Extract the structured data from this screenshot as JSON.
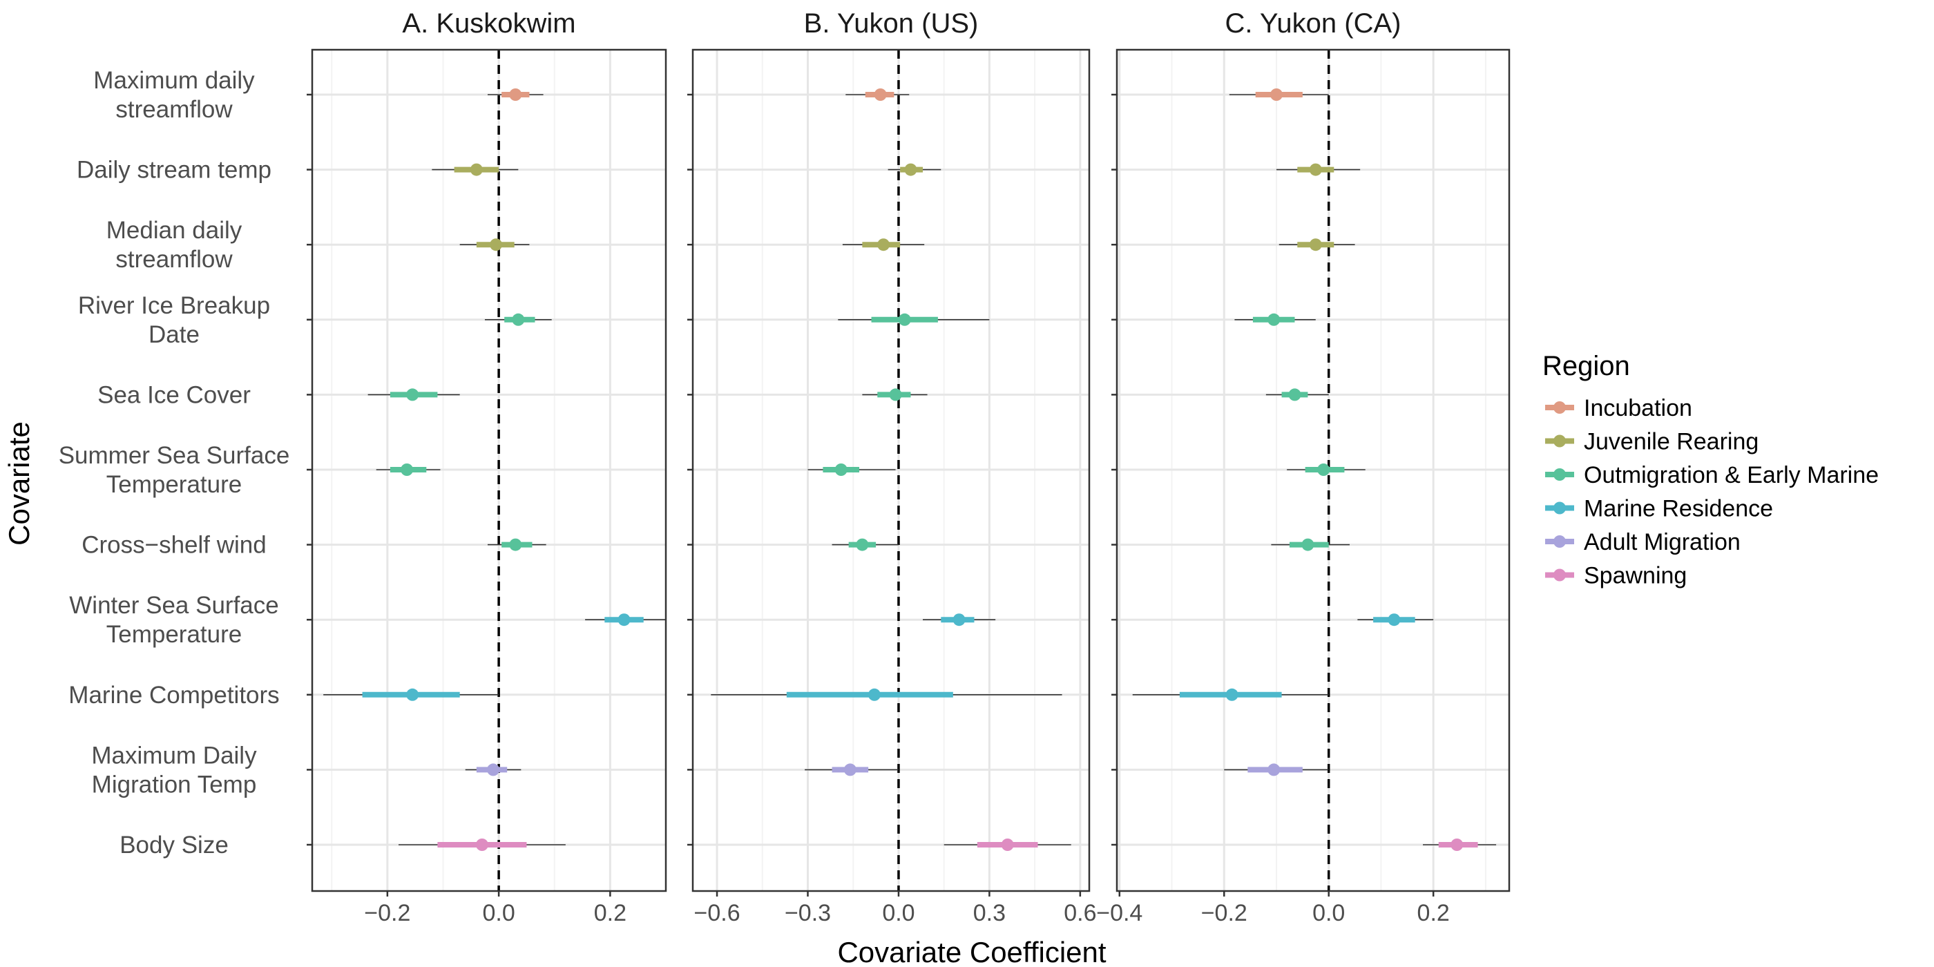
{
  "chart_data": {
    "type": "scatter",
    "subtype": "coefficient-interval-plot",
    "xlabel": "Covariate Coefficient",
    "ylabel": "Covariate",
    "grid": true,
    "reference_line_x": 0,
    "covariates": [
      [
        "Maximum daily",
        "streamflow"
      ],
      [
        "Daily stream temp"
      ],
      [
        "Median daily",
        "streamflow"
      ],
      [
        "River Ice Breakup",
        "Date"
      ],
      [
        "Sea Ice Cover"
      ],
      [
        "Summer Sea Surface",
        "Temperature"
      ],
      [
        "Cross−shelf wind"
      ],
      [
        "Winter Sea Surface",
        "Temperature"
      ],
      [
        "Marine Competitors"
      ],
      [
        "Maximum Daily",
        "Migration Temp"
      ],
      [
        "Body Size"
      ]
    ],
    "covariate_region": [
      "Incubation",
      "Juvenile Rearing",
      "Juvenile Rearing",
      "Outmigration & Early Marine",
      "Outmigration & Early Marine",
      "Outmigration & Early Marine",
      "Outmigration & Early Marine",
      "Marine Residence",
      "Marine Residence",
      "Adult Migration",
      "Spawning"
    ],
    "legend": {
      "title": "Region",
      "position": "right",
      "entries": [
        {
          "name": "Incubation",
          "color": "#E09A82"
        },
        {
          "name": "Juvenile Rearing",
          "color": "#A9AD5E"
        },
        {
          "name": "Outmigration & Early Marine",
          "color": "#57C29A"
        },
        {
          "name": "Marine Residence",
          "color": "#4DB8CB"
        },
        {
          "name": "Adult Migration",
          "color": "#A8A3DC"
        },
        {
          "name": "Spawning",
          "color": "#DE8CC1"
        }
      ]
    },
    "panels": [
      {
        "title": "A. Kuskokwim",
        "xlim": [
          -0.335,
          0.3
        ],
        "xticks": [
          -0.2,
          0.0,
          0.2
        ],
        "xtick_labels": [
          "−0.2",
          "0.0",
          "0.2"
        ],
        "estimates": [
          {
            "mean": 0.03,
            "inner": [
              0.005,
              0.055
            ],
            "outer": [
              -0.02,
              0.08
            ]
          },
          {
            "mean": -0.04,
            "inner": [
              -0.08,
              0.0
            ],
            "outer": [
              -0.12,
              0.035
            ]
          },
          {
            "mean": -0.005,
            "inner": [
              -0.04,
              0.028
            ],
            "outer": [
              -0.07,
              0.055
            ]
          },
          {
            "mean": 0.035,
            "inner": [
              0.01,
              0.065
            ],
            "outer": [
              -0.025,
              0.095
            ]
          },
          {
            "mean": -0.155,
            "inner": [
              -0.195,
              -0.11
            ],
            "outer": [
              -0.235,
              -0.07
            ]
          },
          {
            "mean": -0.165,
            "inner": [
              -0.195,
              -0.13
            ],
            "outer": [
              -0.22,
              -0.105
            ]
          },
          {
            "mean": 0.03,
            "inner": [
              0.005,
              0.06
            ],
            "outer": [
              -0.02,
              0.085
            ]
          },
          {
            "mean": 0.225,
            "inner": [
              0.19,
              0.26
            ],
            "outer": [
              0.155,
              0.3
            ]
          },
          {
            "mean": -0.155,
            "inner": [
              -0.245,
              -0.07
            ],
            "outer": [
              -0.315,
              0.0
            ]
          },
          {
            "mean": -0.01,
            "inner": [
              -0.04,
              0.015
            ],
            "outer": [
              -0.06,
              0.04
            ]
          },
          {
            "mean": -0.03,
            "inner": [
              -0.11,
              0.05
            ],
            "outer": [
              -0.18,
              0.12
            ]
          }
        ]
      },
      {
        "title": "B. Yukon (US)",
        "xlim": [
          -0.68,
          0.63
        ],
        "xticks": [
          -0.6,
          -0.3,
          0.0,
          0.3,
          0.6
        ],
        "xtick_labels": [
          "−0.6",
          "−0.3",
          "0.0",
          "0.3",
          "0.6"
        ],
        "estimates": [
          {
            "mean": -0.06,
            "inner": [
              -0.11,
              -0.015
            ],
            "outer": [
              -0.175,
              0.035
            ]
          },
          {
            "mean": 0.04,
            "inner": [
              0.005,
              0.08
            ],
            "outer": [
              -0.035,
              0.14
            ]
          },
          {
            "mean": -0.05,
            "inner": [
              -0.12,
              0.005
            ],
            "outer": [
              -0.185,
              0.085
            ]
          },
          {
            "mean": 0.02,
            "inner": [
              -0.09,
              0.13
            ],
            "outer": [
              -0.2,
              0.3
            ]
          },
          {
            "mean": -0.01,
            "inner": [
              -0.07,
              0.04
            ],
            "outer": [
              -0.12,
              0.095
            ]
          },
          {
            "mean": -0.19,
            "inner": [
              -0.25,
              -0.13
            ],
            "outer": [
              -0.3,
              -0.01
            ]
          },
          {
            "mean": -0.12,
            "inner": [
              -0.165,
              -0.075
            ],
            "outer": [
              -0.22,
              0.0
            ]
          },
          {
            "mean": 0.2,
            "inner": [
              0.14,
              0.25
            ],
            "outer": [
              0.08,
              0.32
            ]
          },
          {
            "mean": -0.08,
            "inner": [
              -0.37,
              0.18
            ],
            "outer": [
              -0.62,
              0.54
            ]
          },
          {
            "mean": -0.16,
            "inner": [
              -0.22,
              -0.1
            ],
            "outer": [
              -0.31,
              0.0
            ]
          },
          {
            "mean": 0.36,
            "inner": [
              0.26,
              0.46
            ],
            "outer": [
              0.15,
              0.57
            ]
          }
        ]
      },
      {
        "title": "C. Yukon (CA)",
        "xlim": [
          -0.405,
          0.345
        ],
        "xticks": [
          -0.4,
          -0.2,
          0.0,
          0.2
        ],
        "xtick_labels": [
          "−0.4",
          "−0.2",
          "0.0",
          "0.2"
        ],
        "estimates": [
          {
            "mean": -0.1,
            "inner": [
              -0.14,
              -0.05
            ],
            "outer": [
              -0.19,
              0.0
            ]
          },
          {
            "mean": -0.025,
            "inner": [
              -0.06,
              0.01
            ],
            "outer": [
              -0.1,
              0.06
            ]
          },
          {
            "mean": -0.025,
            "inner": [
              -0.06,
              0.01
            ],
            "outer": [
              -0.095,
              0.05
            ]
          },
          {
            "mean": -0.105,
            "inner": [
              -0.145,
              -0.065
            ],
            "outer": [
              -0.18,
              -0.025
            ]
          },
          {
            "mean": -0.065,
            "inner": [
              -0.09,
              -0.04
            ],
            "outer": [
              -0.12,
              0.0
            ]
          },
          {
            "mean": -0.01,
            "inner": [
              -0.045,
              0.03
            ],
            "outer": [
              -0.08,
              0.07
            ]
          },
          {
            "mean": -0.04,
            "inner": [
              -0.075,
              0.0
            ],
            "outer": [
              -0.11,
              0.04
            ]
          },
          {
            "mean": 0.125,
            "inner": [
              0.085,
              0.165
            ],
            "outer": [
              0.055,
              0.2
            ]
          },
          {
            "mean": -0.185,
            "inner": [
              -0.285,
              -0.09
            ],
            "outer": [
              -0.375,
              0.0
            ]
          },
          {
            "mean": -0.105,
            "inner": [
              -0.155,
              -0.05
            ],
            "outer": [
              -0.2,
              0.0
            ]
          },
          {
            "mean": 0.245,
            "inner": [
              0.21,
              0.285
            ],
            "outer": [
              0.18,
              0.32
            ]
          }
        ]
      }
    ]
  }
}
